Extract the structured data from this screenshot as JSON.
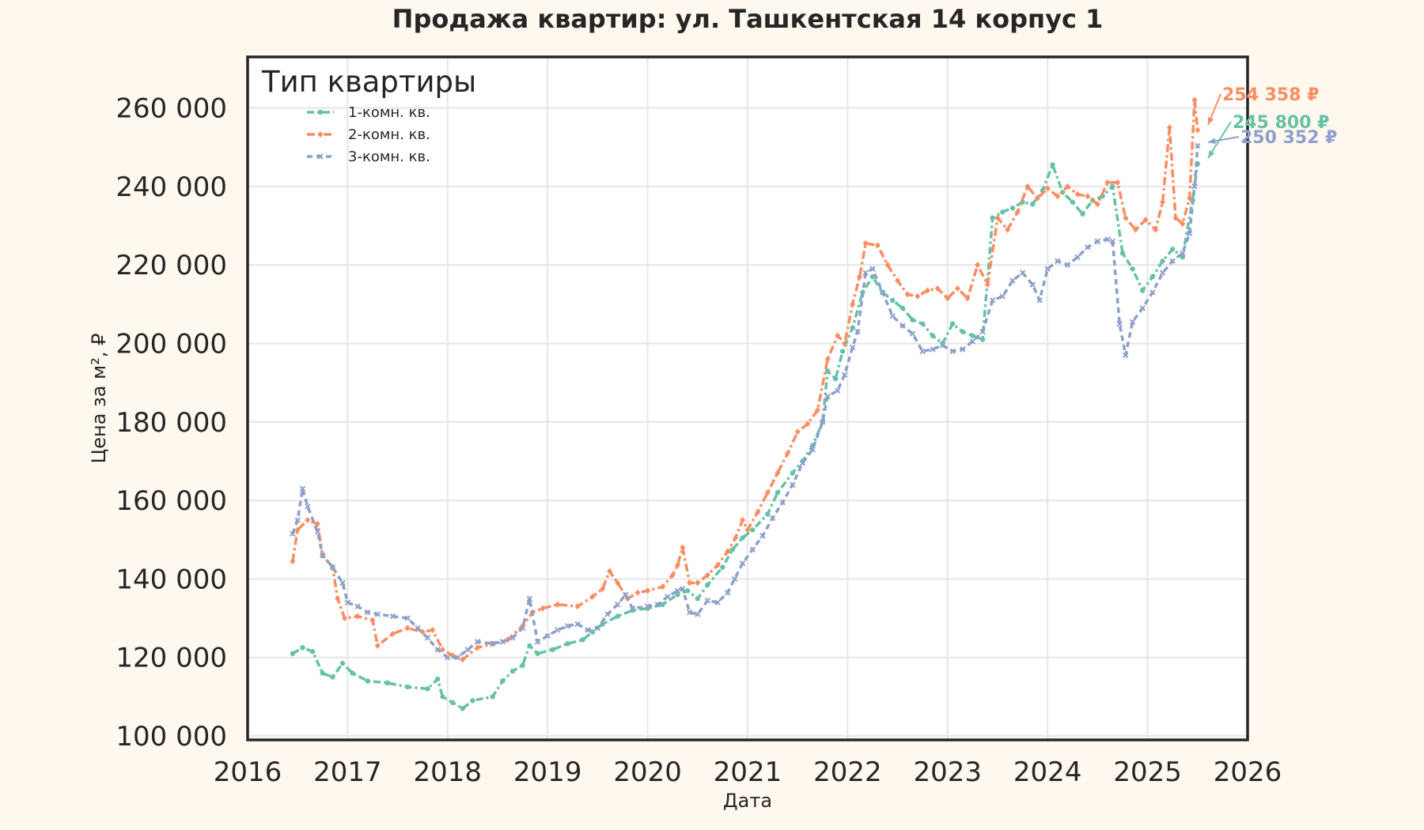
{
  "colors": {
    "series_1": "#66c2a5",
    "series_2": "#fc8d62",
    "series_3": "#8da0cb",
    "background": "#fff8ef",
    "plot_background": "#ffffff",
    "grid": "#e6e6e6",
    "frame": "#262626"
  },
  "chart_data": {
    "type": "line",
    "title": "Продажа квартир: ул. Ташкентская 14 корпус 1",
    "xlabel": "Дата",
    "ylabel": "Цена за м², ₽",
    "xlim": [
      2016,
      2026
    ],
    "ylim": [
      99000,
      273000
    ],
    "x_ticks": [
      "2016",
      "2017",
      "2018",
      "2019",
      "2020",
      "2021",
      "2022",
      "2023",
      "2024",
      "2025",
      "2026"
    ],
    "y_ticks": [
      "100 000",
      "120 000",
      "140 000",
      "160 000",
      "180 000",
      "200 000",
      "220 000",
      "240 000",
      "260 000"
    ],
    "grid": true,
    "legend": {
      "title": "Тип квартиры",
      "position": "top-left"
    },
    "series": [
      {
        "name": "1-комн. кв.",
        "end_label": "245 800 ₽",
        "points": [
          [
            2016.45,
            121000
          ],
          [
            2016.55,
            122500
          ],
          [
            2016.65,
            121500
          ],
          [
            2016.75,
            116000
          ],
          [
            2016.85,
            115000
          ],
          [
            2016.95,
            118500
          ],
          [
            2017.05,
            116000
          ],
          [
            2017.2,
            114000
          ],
          [
            2017.4,
            113500
          ],
          [
            2017.6,
            112500
          ],
          [
            2017.8,
            112000
          ],
          [
            2017.9,
            114500
          ],
          [
            2017.95,
            110000
          ],
          [
            2018.05,
            108500
          ],
          [
            2018.15,
            107000
          ],
          [
            2018.25,
            109000
          ],
          [
            2018.45,
            110000
          ],
          [
            2018.55,
            114000
          ],
          [
            2018.65,
            116500
          ],
          [
            2018.75,
            118000
          ],
          [
            2018.82,
            123000
          ],
          [
            2018.9,
            121000
          ],
          [
            2019.05,
            122000
          ],
          [
            2019.2,
            123500
          ],
          [
            2019.35,
            124500
          ],
          [
            2019.45,
            126500
          ],
          [
            2019.55,
            128500
          ],
          [
            2019.7,
            130500
          ],
          [
            2019.85,
            132000
          ],
          [
            2020.0,
            132500
          ],
          [
            2020.15,
            133500
          ],
          [
            2020.3,
            136000
          ],
          [
            2020.4,
            137000
          ],
          [
            2020.5,
            135000
          ],
          [
            2020.6,
            138500
          ],
          [
            2020.75,
            143000
          ],
          [
            2020.85,
            147500
          ],
          [
            2020.95,
            150500
          ],
          [
            2021.05,
            152500
          ],
          [
            2021.2,
            156500
          ],
          [
            2021.3,
            162000
          ],
          [
            2021.45,
            167000
          ],
          [
            2021.55,
            170000
          ],
          [
            2021.65,
            174000
          ],
          [
            2021.75,
            180000
          ],
          [
            2021.8,
            193000
          ],
          [
            2021.88,
            191000
          ],
          [
            2021.95,
            198000
          ],
          [
            2022.05,
            204000
          ],
          [
            2022.15,
            213000
          ],
          [
            2022.25,
            217000
          ],
          [
            2022.35,
            213000
          ],
          [
            2022.45,
            211000
          ],
          [
            2022.55,
            209000
          ],
          [
            2022.65,
            206000
          ],
          [
            2022.75,
            205000
          ],
          [
            2022.85,
            202000
          ],
          [
            2022.95,
            200000
          ],
          [
            2023.05,
            205000
          ],
          [
            2023.15,
            203000
          ],
          [
            2023.25,
            202000
          ],
          [
            2023.35,
            201000
          ],
          [
            2023.45,
            232000
          ],
          [
            2023.55,
            233500
          ],
          [
            2023.65,
            234500
          ],
          [
            2023.75,
            236000
          ],
          [
            2023.85,
            235500
          ],
          [
            2023.95,
            239000
          ],
          [
            2024.05,
            245500
          ],
          [
            2024.15,
            238500
          ],
          [
            2024.25,
            236000
          ],
          [
            2024.35,
            233000
          ],
          [
            2024.45,
            236500
          ],
          [
            2024.55,
            237500
          ],
          [
            2024.65,
            240000
          ],
          [
            2024.75,
            223000
          ],
          [
            2024.85,
            219000
          ],
          [
            2024.95,
            213500
          ],
          [
            2025.05,
            217000
          ],
          [
            2025.15,
            221000
          ],
          [
            2025.25,
            224000
          ],
          [
            2025.35,
            222000
          ],
          [
            2025.45,
            236500
          ],
          [
            2025.5,
            245800
          ]
        ]
      },
      {
        "name": "2-комн. кв.",
        "end_label": "254 358 ₽",
        "points": [
          [
            2016.45,
            144500
          ],
          [
            2016.5,
            152500
          ],
          [
            2016.6,
            155000
          ],
          [
            2016.7,
            154000
          ],
          [
            2016.75,
            146000
          ],
          [
            2016.85,
            143000
          ],
          [
            2016.9,
            135000
          ],
          [
            2016.97,
            130000
          ],
          [
            2017.1,
            130500
          ],
          [
            2017.25,
            129500
          ],
          [
            2017.3,
            123000
          ],
          [
            2017.45,
            126000
          ],
          [
            2017.6,
            127500
          ],
          [
            2017.75,
            126500
          ],
          [
            2017.85,
            127000
          ],
          [
            2017.95,
            122000
          ],
          [
            2018.05,
            120500
          ],
          [
            2018.15,
            119500
          ],
          [
            2018.3,
            122500
          ],
          [
            2018.45,
            123500
          ],
          [
            2018.6,
            124500
          ],
          [
            2018.75,
            128000
          ],
          [
            2018.85,
            131500
          ],
          [
            2018.95,
            132500
          ],
          [
            2019.1,
            133500
          ],
          [
            2019.3,
            133000
          ],
          [
            2019.45,
            135500
          ],
          [
            2019.55,
            137500
          ],
          [
            2019.62,
            142000
          ],
          [
            2019.7,
            139000
          ],
          [
            2019.8,
            135000
          ],
          [
            2019.9,
            136500
          ],
          [
            2020.0,
            137000
          ],
          [
            2020.15,
            138000
          ],
          [
            2020.25,
            141000
          ],
          [
            2020.3,
            143500
          ],
          [
            2020.35,
            148000
          ],
          [
            2020.42,
            139000
          ],
          [
            2020.5,
            139000
          ],
          [
            2020.6,
            141000
          ],
          [
            2020.7,
            143500
          ],
          [
            2020.8,
            147000
          ],
          [
            2020.88,
            150500
          ],
          [
            2020.95,
            155000
          ],
          [
            2021.0,
            152500
          ],
          [
            2021.1,
            157000
          ],
          [
            2021.2,
            162000
          ],
          [
            2021.3,
            167000
          ],
          [
            2021.4,
            172000
          ],
          [
            2021.5,
            177500
          ],
          [
            2021.6,
            179500
          ],
          [
            2021.7,
            183000
          ],
          [
            2021.8,
            196000
          ],
          [
            2021.9,
            202000
          ],
          [
            2021.97,
            200000
          ],
          [
            2022.05,
            210000
          ],
          [
            2022.12,
            217000
          ],
          [
            2022.18,
            225500
          ],
          [
            2022.3,
            225000
          ],
          [
            2022.4,
            220000
          ],
          [
            2022.5,
            216000
          ],
          [
            2022.6,
            212500
          ],
          [
            2022.7,
            212000
          ],
          [
            2022.8,
            213500
          ],
          [
            2022.9,
            214000
          ],
          [
            2023.0,
            211500
          ],
          [
            2023.1,
            214000
          ],
          [
            2023.2,
            211500
          ],
          [
            2023.3,
            220000
          ],
          [
            2023.4,
            215000
          ],
          [
            2023.5,
            232000
          ],
          [
            2023.6,
            229000
          ],
          [
            2023.7,
            233500
          ],
          [
            2023.8,
            240000
          ],
          [
            2023.9,
            237000
          ],
          [
            2024.0,
            239500
          ],
          [
            2024.1,
            237500
          ],
          [
            2024.2,
            240000
          ],
          [
            2024.3,
            238000
          ],
          [
            2024.4,
            237500
          ],
          [
            2024.5,
            235500
          ],
          [
            2024.6,
            241000
          ],
          [
            2024.7,
            241000
          ],
          [
            2024.78,
            232000
          ],
          [
            2024.88,
            229000
          ],
          [
            2024.98,
            231500
          ],
          [
            2025.08,
            229000
          ],
          [
            2025.15,
            236000
          ],
          [
            2025.22,
            255000
          ],
          [
            2025.28,
            232000
          ],
          [
            2025.35,
            230500
          ],
          [
            2025.42,
            237000
          ],
          [
            2025.47,
            262000
          ],
          [
            2025.5,
            254358
          ]
        ]
      },
      {
        "name": "3-комн. кв.",
        "end_label": "250 352 ₽",
        "points": [
          [
            2016.45,
            151500
          ],
          [
            2016.5,
            155000
          ],
          [
            2016.55,
            163000
          ],
          [
            2016.6,
            158500
          ],
          [
            2016.7,
            152000
          ],
          [
            2016.75,
            146000
          ],
          [
            2016.85,
            143000
          ],
          [
            2016.95,
            139000
          ],
          [
            2017.0,
            134000
          ],
          [
            2017.1,
            133000
          ],
          [
            2017.2,
            131500
          ],
          [
            2017.3,
            131000
          ],
          [
            2017.45,
            130500
          ],
          [
            2017.6,
            130000
          ],
          [
            2017.7,
            127500
          ],
          [
            2017.8,
            125000
          ],
          [
            2017.9,
            122000
          ],
          [
            2018.0,
            120000
          ],
          [
            2018.1,
            120000
          ],
          [
            2018.2,
            122000
          ],
          [
            2018.3,
            124000
          ],
          [
            2018.45,
            123500
          ],
          [
            2018.55,
            124000
          ],
          [
            2018.65,
            125000
          ],
          [
            2018.75,
            127500
          ],
          [
            2018.82,
            135000
          ],
          [
            2018.9,
            124000
          ],
          [
            2019.0,
            125500
          ],
          [
            2019.1,
            127000
          ],
          [
            2019.2,
            128000
          ],
          [
            2019.3,
            128500
          ],
          [
            2019.4,
            127000
          ],
          [
            2019.5,
            127500
          ],
          [
            2019.6,
            131000
          ],
          [
            2019.7,
            133500
          ],
          [
            2019.78,
            136000
          ],
          [
            2019.85,
            132500
          ],
          [
            2020.0,
            133000
          ],
          [
            2020.1,
            133500
          ],
          [
            2020.2,
            135500
          ],
          [
            2020.3,
            137000
          ],
          [
            2020.35,
            137500
          ],
          [
            2020.42,
            131500
          ],
          [
            2020.5,
            131000
          ],
          [
            2020.6,
            134500
          ],
          [
            2020.7,
            134000
          ],
          [
            2020.8,
            136500
          ],
          [
            2020.87,
            140000
          ],
          [
            2020.95,
            144000
          ],
          [
            2021.05,
            147500
          ],
          [
            2021.15,
            151000
          ],
          [
            2021.25,
            155500
          ],
          [
            2021.35,
            159500
          ],
          [
            2021.45,
            164000
          ],
          [
            2021.55,
            169500
          ],
          [
            2021.65,
            173000
          ],
          [
            2021.75,
            180000
          ],
          [
            2021.8,
            186500
          ],
          [
            2021.9,
            188000
          ],
          [
            2021.97,
            192000
          ],
          [
            2022.05,
            199000
          ],
          [
            2022.1,
            203000
          ],
          [
            2022.18,
            218000
          ],
          [
            2022.25,
            219000
          ],
          [
            2022.35,
            213000
          ],
          [
            2022.45,
            207000
          ],
          [
            2022.55,
            204500
          ],
          [
            2022.65,
            202500
          ],
          [
            2022.75,
            198000
          ],
          [
            2022.85,
            198500
          ],
          [
            2022.95,
            199500
          ],
          [
            2023.05,
            198000
          ],
          [
            2023.15,
            198500
          ],
          [
            2023.25,
            200500
          ],
          [
            2023.35,
            203000
          ],
          [
            2023.45,
            211000
          ],
          [
            2023.55,
            212000
          ],
          [
            2023.65,
            216000
          ],
          [
            2023.75,
            218000
          ],
          [
            2023.85,
            215000
          ],
          [
            2023.92,
            211000
          ],
          [
            2024.0,
            219000
          ],
          [
            2024.1,
            221000
          ],
          [
            2024.2,
            220000
          ],
          [
            2024.3,
            222000
          ],
          [
            2024.4,
            224500
          ],
          [
            2024.5,
            226000
          ],
          [
            2024.6,
            226500
          ],
          [
            2024.65,
            226000
          ],
          [
            2024.72,
            205000
          ],
          [
            2024.78,
            197000
          ],
          [
            2024.85,
            205500
          ],
          [
            2024.95,
            209000
          ],
          [
            2025.05,
            213000
          ],
          [
            2025.15,
            218000
          ],
          [
            2025.25,
            221000
          ],
          [
            2025.35,
            223000
          ],
          [
            2025.42,
            228000
          ],
          [
            2025.47,
            240000
          ],
          [
            2025.5,
            250352
          ]
        ]
      }
    ]
  }
}
